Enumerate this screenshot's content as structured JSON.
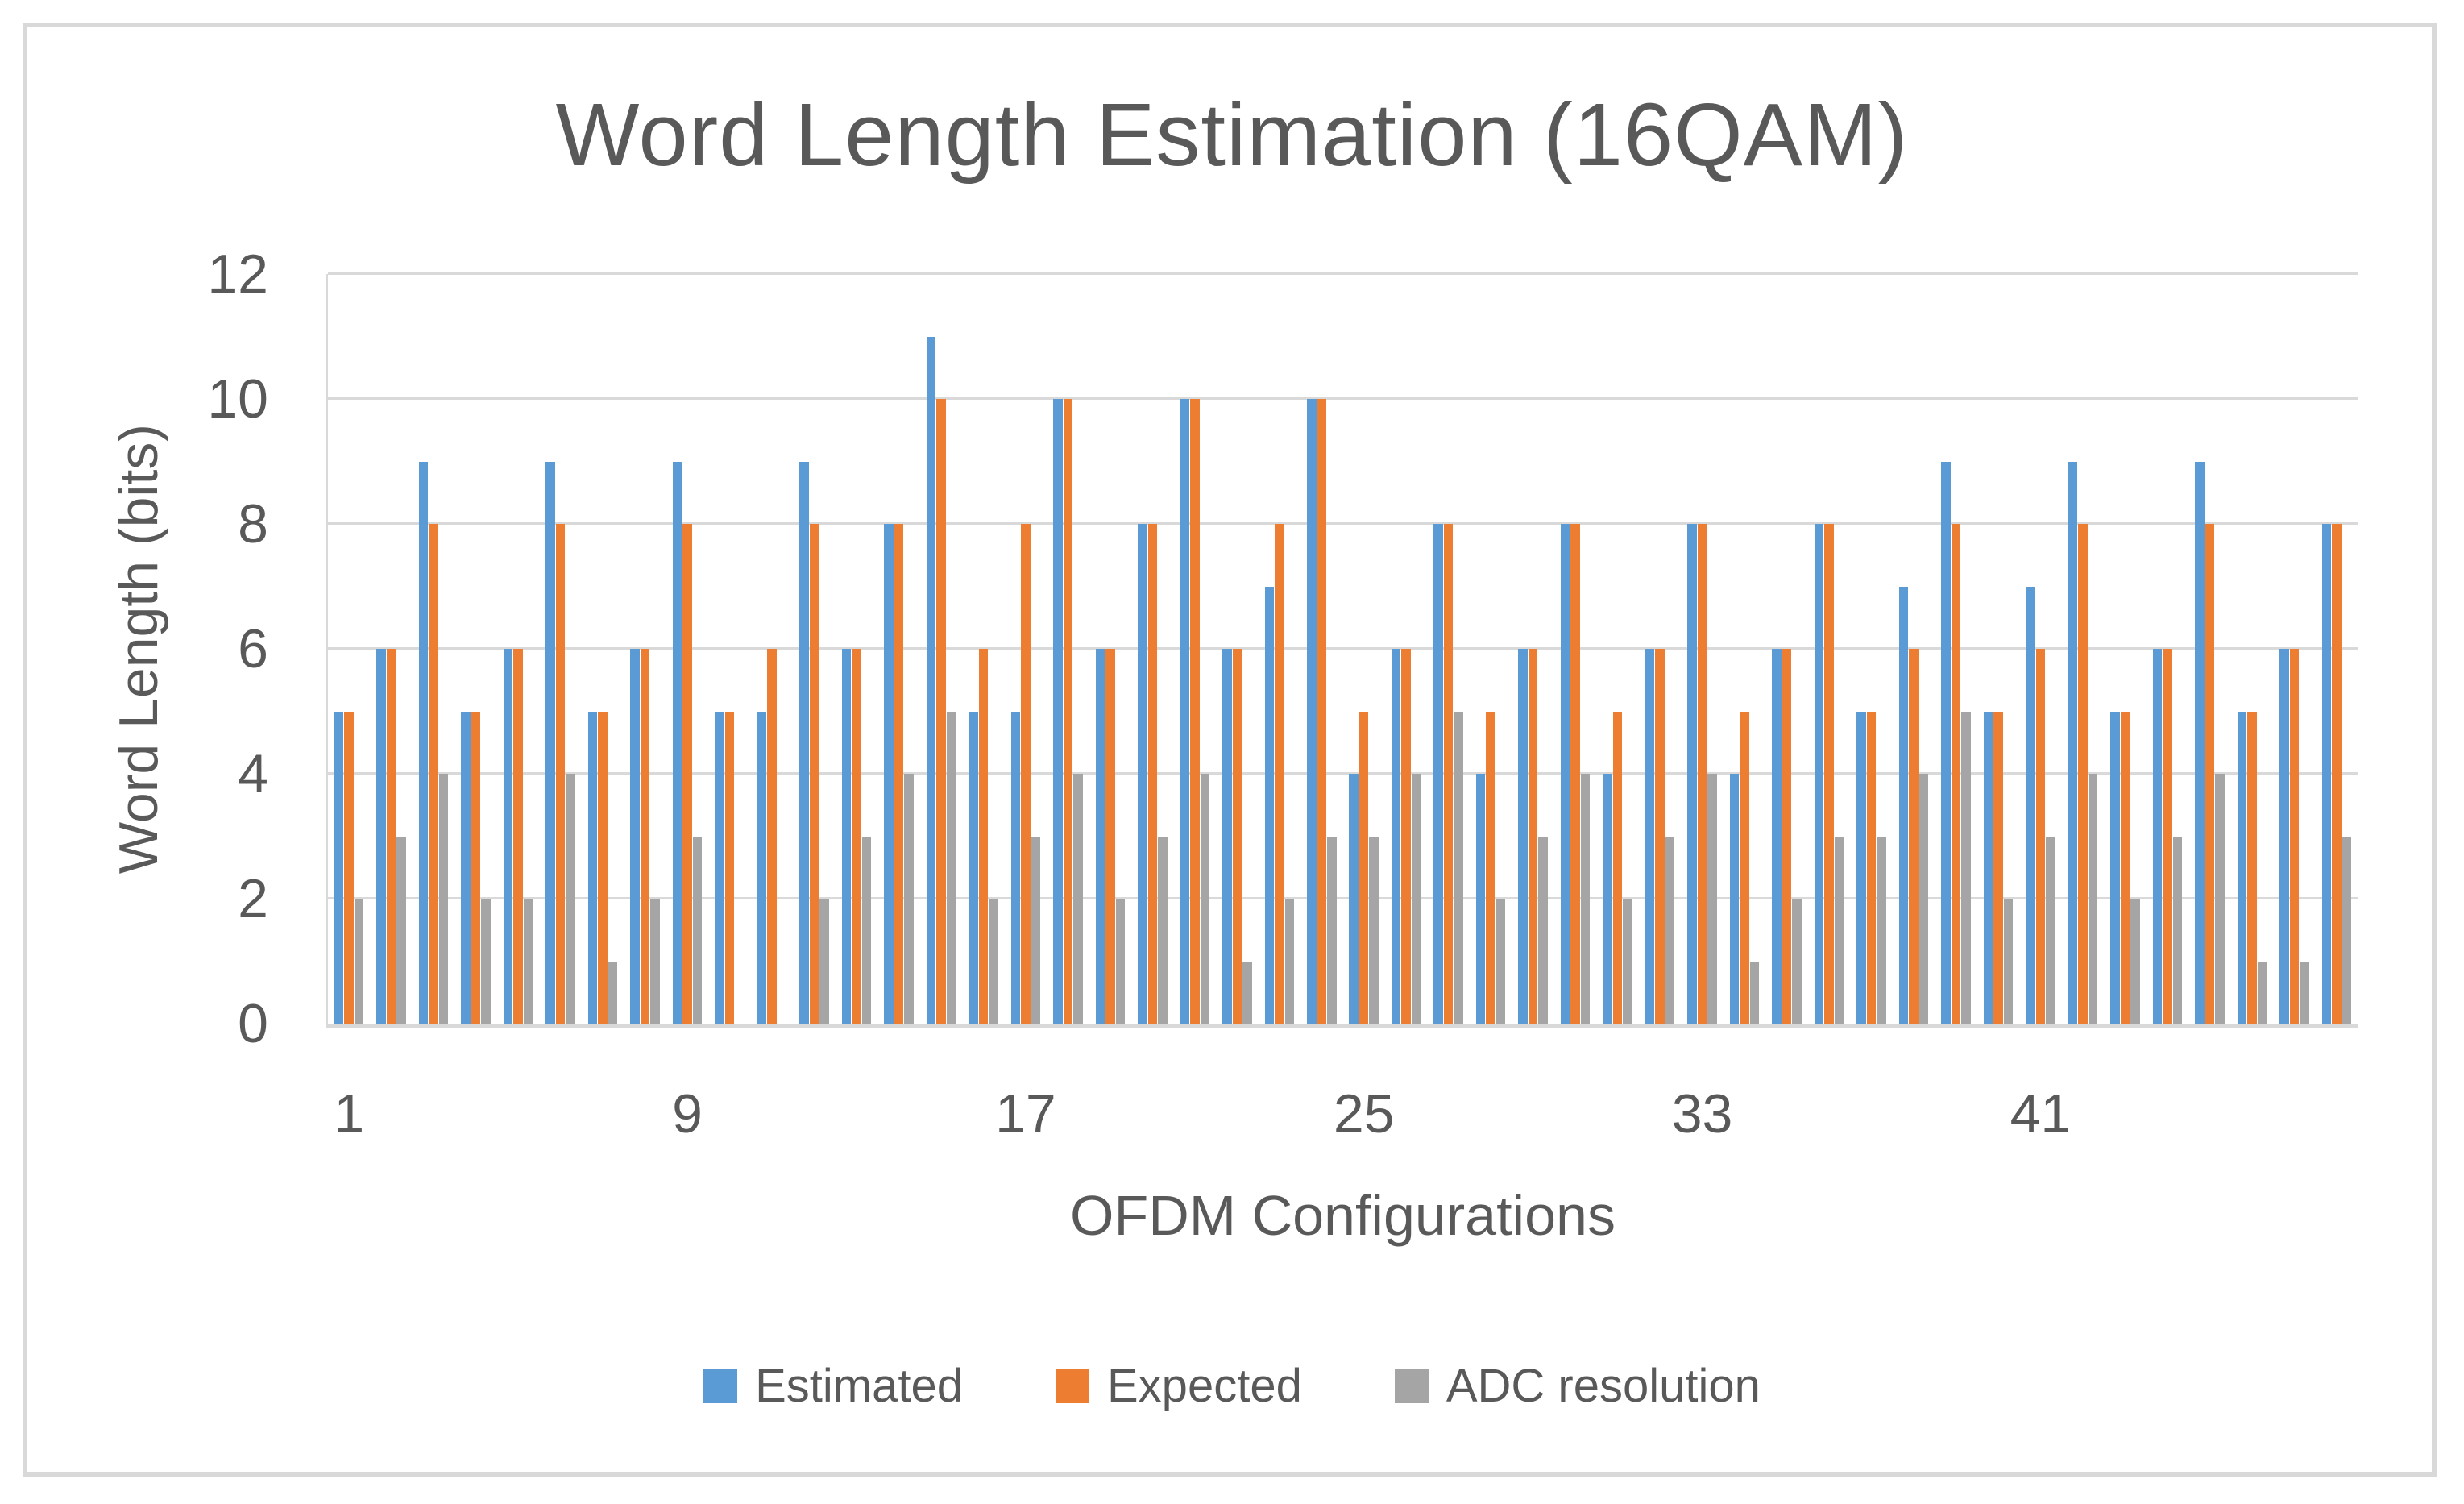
{
  "figure": {
    "background": "#FFFFFF",
    "frame_border_color": "#D9D9D9",
    "gridline_color": "#D9D9D9",
    "text_color": "#595959"
  },
  "chart_data": {
    "type": "bar",
    "title": "Word Length Estimation (16QAM)",
    "xlabel": "OFDM Configurations",
    "ylabel": "Word Length (bits)",
    "ylim": [
      0,
      12
    ],
    "yticks": [
      0,
      2,
      4,
      6,
      8,
      10,
      12
    ],
    "xticks": [
      1,
      9,
      17,
      25,
      33,
      41
    ],
    "n_categories": 48,
    "grid": true,
    "legend_position": "bottom",
    "series": [
      {
        "name": "Estimated",
        "color": "#5B9BD5",
        "values": [
          5,
          6,
          9,
          5,
          6,
          9,
          5,
          6,
          9,
          5,
          5,
          9,
          6,
          8,
          11,
          5,
          5,
          10,
          6,
          8,
          10,
          6,
          7,
          10,
          4,
          6,
          8,
          4,
          6,
          8,
          4,
          6,
          8,
          4,
          6,
          8,
          5,
          7,
          9,
          5,
          7,
          9,
          5,
          6,
          9,
          5,
          6,
          8
        ]
      },
      {
        "name": "Expected",
        "color": "#ED7D31",
        "values": [
          5,
          6,
          8,
          5,
          6,
          8,
          5,
          6,
          8,
          5,
          6,
          8,
          6,
          8,
          10,
          6,
          8,
          10,
          6,
          8,
          10,
          6,
          8,
          10,
          5,
          6,
          8,
          5,
          6,
          8,
          5,
          6,
          8,
          5,
          6,
          8,
          5,
          6,
          8,
          5,
          6,
          8,
          5,
          6,
          8,
          5,
          6,
          8
        ]
      },
      {
        "name": "ADC resolution",
        "color": "#A5A5A5",
        "values": [
          2,
          3,
          4,
          2,
          2,
          4,
          1,
          2,
          3,
          0,
          0,
          2,
          3,
          4,
          5,
          2,
          3,
          4,
          2,
          3,
          4,
          1,
          2,
          3,
          3,
          4,
          5,
          2,
          3,
          4,
          2,
          3,
          4,
          1,
          2,
          3,
          3,
          4,
          5,
          2,
          3,
          4,
          2,
          3,
          4,
          1,
          1,
          3
        ]
      }
    ]
  }
}
